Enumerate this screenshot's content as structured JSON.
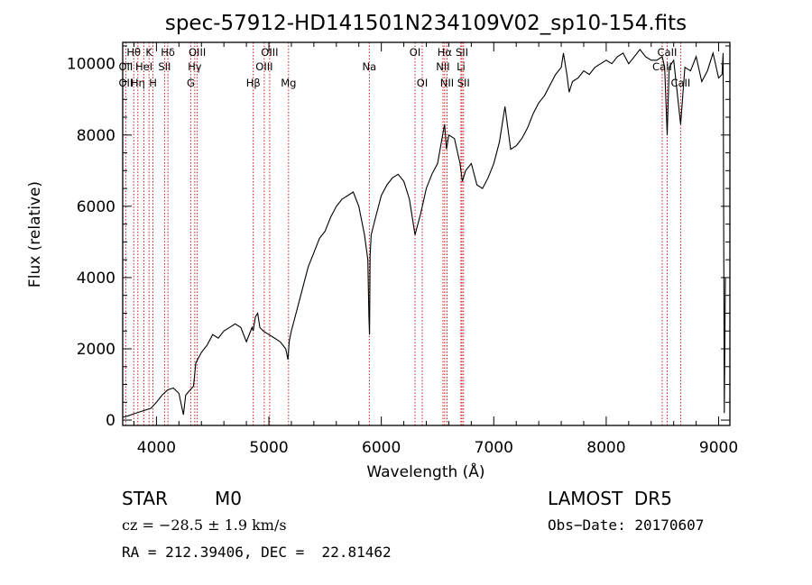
{
  "chart_data": {
    "type": "line",
    "title": "spec-57912-HD141501N234109V02_sp10-154.fits",
    "xlabel": "Wavelength (Å)",
    "ylabel": "Flux (relative)",
    "xlim": [
      3700,
      9100
    ],
    "ylim": [
      -150,
      10600
    ],
    "x_ticks": [
      4000,
      5000,
      6000,
      7000,
      8000,
      9000
    ],
    "y_ticks": [
      0,
      2000,
      4000,
      6000,
      8000,
      10000
    ],
    "grid": false,
    "series": [
      {
        "color": "#000000",
        "x": [
          3700,
          3750,
          3800,
          3850,
          3900,
          3950,
          4000,
          4050,
          4100,
          4150,
          4200,
          4240,
          4260,
          4300,
          4330,
          4350,
          4400,
          4450,
          4500,
          4550,
          4600,
          4650,
          4700,
          4750,
          4800,
          4850,
          4860,
          4880,
          4900,
          4920,
          4950,
          5000,
          5050,
          5100,
          5150,
          5170,
          5180,
          5200,
          5250,
          5300,
          5350,
          5400,
          5450,
          5500,
          5550,
          5600,
          5650,
          5700,
          5750,
          5800,
          5850,
          5880,
          5890,
          5895,
          5900,
          5910,
          5950,
          6000,
          6050,
          6100,
          6150,
          6200,
          6250,
          6300,
          6350,
          6400,
          6450,
          6500,
          6540,
          6563,
          6580,
          6600,
          6650,
          6700,
          6720,
          6750,
          6800,
          6850,
          6900,
          6950,
          7000,
          7050,
          7100,
          7150,
          7200,
          7250,
          7300,
          7350,
          7400,
          7450,
          7500,
          7550,
          7600,
          7620,
          7650,
          7670,
          7700,
          7750,
          7800,
          7850,
          7900,
          7950,
          8000,
          8050,
          8100,
          8150,
          8200,
          8250,
          8300,
          8350,
          8400,
          8450,
          8498,
          8520,
          8542,
          8560,
          8600,
          8662,
          8700,
          8750,
          8800,
          8850,
          8900,
          8950,
          9000,
          9030,
          9040,
          9050,
          9060
        ],
        "y": [
          80,
          120,
          180,
          230,
          280,
          330,
          500,
          700,
          850,
          900,
          750,
          150,
          700,
          850,
          950,
          1600,
          1900,
          2100,
          2400,
          2300,
          2500,
          2600,
          2700,
          2600,
          2200,
          2600,
          2500,
          2900,
          3000,
          2600,
          2500,
          2400,
          2300,
          2200,
          2000,
          1700,
          2200,
          2500,
          3100,
          3700,
          4300,
          4700,
          5100,
          5300,
          5700,
          6000,
          6200,
          6300,
          6400,
          6000,
          5200,
          4500,
          2900,
          2400,
          4600,
          5200,
          5700,
          6300,
          6600,
          6800,
          6900,
          6700,
          6200,
          5200,
          5800,
          6500,
          6900,
          7200,
          7900,
          8300,
          7600,
          8000,
          7900,
          7200,
          6700,
          7000,
          7200,
          6600,
          6500,
          6800,
          7200,
          7800,
          8800,
          7600,
          7700,
          7900,
          8200,
          8600,
          8900,
          9100,
          9400,
          9700,
          9900,
          10300,
          9700,
          9200,
          9500,
          9600,
          9800,
          9700,
          9900,
          10000,
          10100,
          10000,
          10200,
          10300,
          10000,
          10200,
          10400,
          10200,
          10100,
          10100,
          10200,
          9900,
          8000,
          9900,
          10100,
          8300,
          9900,
          9800,
          10200,
          9500,
          9800,
          10300,
          9600,
          9700,
          10300,
          200,
          4000
        ]
      }
    ],
    "spectral_lines": [
      {
        "label": "Hθ",
        "wavelength": 3798,
        "row": 1
      },
      {
        "label": "OII",
        "wavelength": 3727,
        "row": 2
      },
      {
        "label": "OII",
        "wavelength": 3727,
        "row": 3
      },
      {
        "label": "Hη",
        "wavelength": 3835,
        "row": 3
      },
      {
        "label": "HeI",
        "wavelength": 3889,
        "row": 2
      },
      {
        "label": "K",
        "wavelength": 3934,
        "row": 1
      },
      {
        "label": "H",
        "wavelength": 3969,
        "row": 3
      },
      {
        "label": "Hδ",
        "wavelength": 4102,
        "row": 1
      },
      {
        "label": "SII",
        "wavelength": 4072,
        "row": 2
      },
      {
        "label": "OIII",
        "wavelength": 4363,
        "row": 1
      },
      {
        "label": "Hγ",
        "wavelength": 4341,
        "row": 2
      },
      {
        "label": "G",
        "wavelength": 4305,
        "row": 3
      },
      {
        "label": "Hβ",
        "wavelength": 4861,
        "row": 3
      },
      {
        "label": "OIII",
        "wavelength": 5007,
        "row": 1
      },
      {
        "label": "OIII",
        "wavelength": 4959,
        "row": 2
      },
      {
        "label": "Mg",
        "wavelength": 5175,
        "row": 3
      },
      {
        "label": "Na",
        "wavelength": 5893,
        "row": 2
      },
      {
        "label": "OI",
        "wavelength": 6300,
        "row": 1
      },
      {
        "label": "OI",
        "wavelength": 6364,
        "row": 3
      },
      {
        "label": "Hα",
        "wavelength": 6563,
        "row": 1
      },
      {
        "label": "NII",
        "wavelength": 6548,
        "row": 2
      },
      {
        "label": "NII",
        "wavelength": 6584,
        "row": 3
      },
      {
        "label": "SII",
        "wavelength": 6717,
        "row": 1
      },
      {
        "label": "Li",
        "wavelength": 6708,
        "row": 2
      },
      {
        "label": "SII",
        "wavelength": 6731,
        "row": 3
      },
      {
        "label": "CaII",
        "wavelength": 8542,
        "row": 1
      },
      {
        "label": "CaII",
        "wavelength": 8498,
        "row": 2
      },
      {
        "label": "CaII",
        "wavelength": 8662,
        "row": 3
      }
    ],
    "line_color": "#cc0000"
  },
  "info": {
    "class_label": "STAR",
    "subclass": "M0",
    "survey": "LAMOST  DR5",
    "cz": "cz = −28.5 ± 1.9 km/s",
    "obs_date": "Obs−Date: 20170607",
    "coords": "RA = 212.39406, DEC =  22.81462"
  }
}
